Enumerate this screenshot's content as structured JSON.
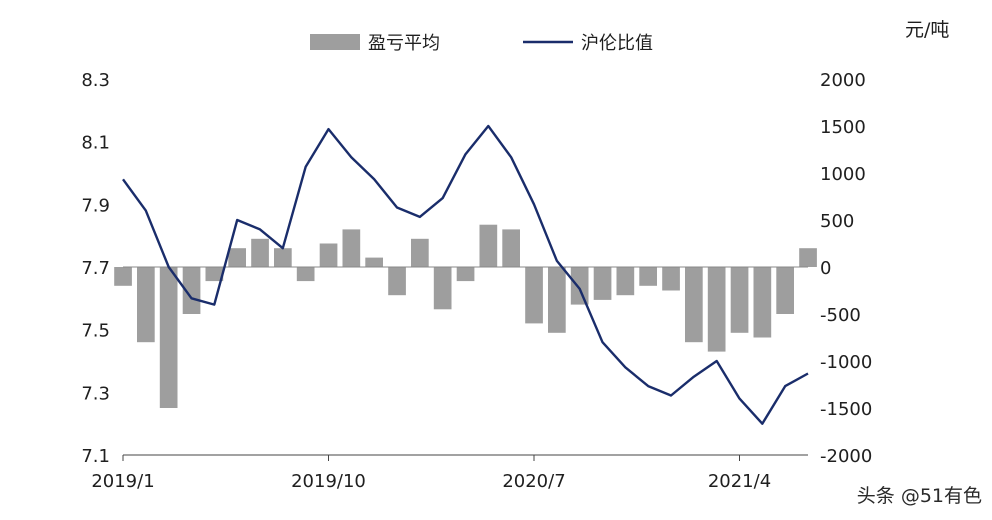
{
  "chart_data": {
    "type": "bar+line",
    "unit_label": "元/吨",
    "legend": [
      "盈亏平均",
      "沪伦比值"
    ],
    "x_ticks": [
      "2019/1",
      "2019/10",
      "2020/7",
      "2021/4"
    ],
    "y_left": {
      "lim": [
        7.1,
        8.3
      ],
      "ticks": [
        "8.3",
        "8.1",
        "7.9",
        "7.7",
        "7.5",
        "7.3",
        "7.1"
      ]
    },
    "y_right": {
      "lim": [
        -2000,
        2000
      ],
      "ticks": [
        "2000",
        "1500",
        "1000",
        "500",
        "0",
        "-500",
        "-1000",
        "-1500",
        "-2000"
      ]
    },
    "series": [
      {
        "name": "盈亏平均",
        "type": "bar",
        "axis": "right",
        "x": [
          "2019/1",
          "2019/2",
          "2019/3",
          "2019/4",
          "2019/5",
          "2019/6",
          "2019/7",
          "2019/8",
          "2019/9",
          "2019/10",
          "2019/11",
          "2019/12",
          "2020/1",
          "2020/2",
          "2020/3",
          "2020/4",
          "2020/5",
          "2020/6",
          "2020/7",
          "2020/8",
          "2020/9",
          "2020/10",
          "2020/11",
          "2020/12",
          "2021/1",
          "2021/2",
          "2021/3",
          "2021/4",
          "2021/5",
          "2021/6",
          "2021/7"
        ],
        "values": [
          -200,
          -800,
          -1500,
          -500,
          -150,
          200,
          300,
          200,
          -150,
          250,
          400,
          100,
          -300,
          300,
          -450,
          -150,
          450,
          400,
          -600,
          -700,
          -400,
          -350,
          -300,
          -200,
          -250,
          -800,
          -900,
          -700,
          -750,
          -500,
          200
        ]
      },
      {
        "name": "沪伦比值",
        "type": "line",
        "axis": "left",
        "x": [
          "2019/1",
          "2019/2",
          "2019/3",
          "2019/4",
          "2019/5",
          "2019/6",
          "2019/7",
          "2019/8",
          "2019/9",
          "2019/10",
          "2019/11",
          "2019/12",
          "2020/1",
          "2020/2",
          "2020/3",
          "2020/4",
          "2020/5",
          "2020/6",
          "2020/7",
          "2020/8",
          "2020/9",
          "2020/10",
          "2020/11",
          "2020/12",
          "2021/1",
          "2021/2",
          "2021/3",
          "2021/4",
          "2021/5",
          "2021/6",
          "2021/7"
        ],
        "values": [
          7.98,
          7.88,
          7.7,
          7.6,
          7.58,
          7.85,
          7.82,
          7.76,
          8.02,
          8.14,
          8.05,
          7.98,
          7.89,
          7.86,
          7.92,
          8.06,
          8.15,
          8.05,
          7.9,
          7.72,
          7.63,
          7.46,
          7.38,
          7.32,
          7.29,
          7.35,
          7.4,
          7.28,
          7.2,
          7.32,
          7.36
        ]
      }
    ],
    "colors": {
      "bars": "#9e9e9e",
      "line": "#1a2d6b"
    }
  },
  "footer": {
    "watermark": "头条 @51有色"
  }
}
